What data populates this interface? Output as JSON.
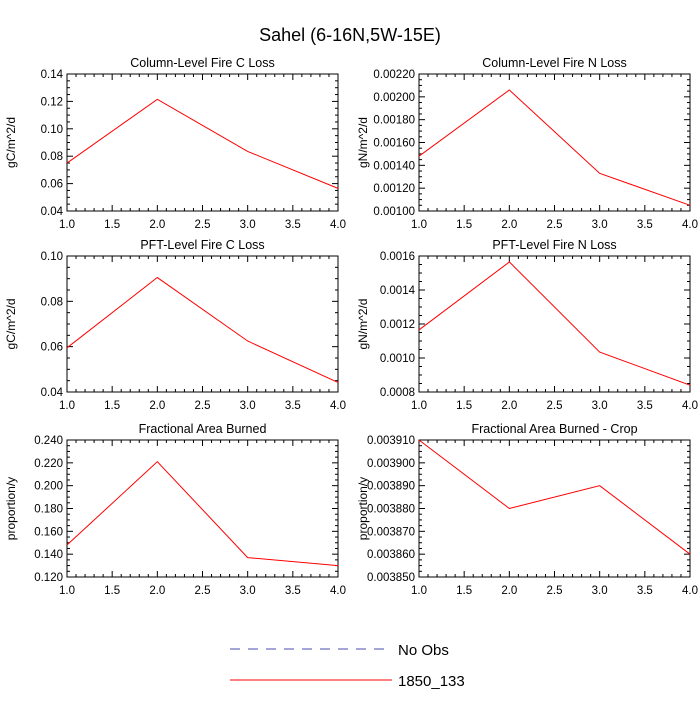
{
  "figure": {
    "title": "Sahel (6-16N,5W-15E)",
    "line_color": "#ff0000",
    "obs_color": "#4b4bb4"
  },
  "legend": {
    "items": [
      {
        "label": "No Obs",
        "style": "dashed"
      },
      {
        "label": "1850_133",
        "style": "solid"
      }
    ]
  },
  "chart_data": [
    {
      "type": "line",
      "title": "Column-Level Fire C Loss",
      "xlabel": "",
      "ylabel": "gC/m^2/d",
      "xlim": [
        1.0,
        4.0
      ],
      "ylim": [
        0.04,
        0.14
      ],
      "x_ticks": [
        "1.0",
        "1.5",
        "2.0",
        "2.5",
        "3.0",
        "3.5",
        "4.0"
      ],
      "y_ticks": [
        "0.04",
        "0.06",
        "0.08",
        "0.10",
        "0.12",
        "0.14"
      ],
      "series": [
        {
          "name": "1850_133",
          "x": [
            1.0,
            2.0,
            3.0,
            4.0
          ],
          "values": [
            0.075,
            0.1215,
            0.0835,
            0.0565
          ]
        }
      ]
    },
    {
      "type": "line",
      "title": "Column-Level Fire N Loss",
      "xlabel": "",
      "ylabel": "gN/m^2/d",
      "xlim": [
        1.0,
        4.0
      ],
      "ylim": [
        0.001,
        0.0022
      ],
      "x_ticks": [
        "1.0",
        "1.5",
        "2.0",
        "2.5",
        "3.0",
        "3.5",
        "4.0"
      ],
      "y_ticks": [
        "0.00100",
        "0.00120",
        "0.00140",
        "0.00160",
        "0.00180",
        "0.00200",
        "0.00220"
      ],
      "series": [
        {
          "name": "1850_133",
          "x": [
            1.0,
            2.0,
            3.0,
            4.0
          ],
          "values": [
            0.00148,
            0.00206,
            0.00133,
            0.00105
          ]
        }
      ]
    },
    {
      "type": "line",
      "title": "PFT-Level Fire C Loss",
      "xlabel": "",
      "ylabel": "gC/m^2/d",
      "xlim": [
        1.0,
        4.0
      ],
      "ylim": [
        0.04,
        0.1
      ],
      "x_ticks": [
        "1.0",
        "1.5",
        "2.0",
        "2.5",
        "3.0",
        "3.5",
        "4.0"
      ],
      "y_ticks": [
        "0.04",
        "0.06",
        "0.08",
        "0.10"
      ],
      "series": [
        {
          "name": "1850_133",
          "x": [
            1.0,
            2.0,
            3.0,
            4.0
          ],
          "values": [
            0.0595,
            0.0905,
            0.0625,
            0.0442
          ]
        }
      ]
    },
    {
      "type": "line",
      "title": "PFT-Level Fire N Loss",
      "xlabel": "",
      "ylabel": "gN/m^2/d",
      "xlim": [
        1.0,
        4.0
      ],
      "ylim": [
        0.0008,
        0.0016
      ],
      "x_ticks": [
        "1.0",
        "1.5",
        "2.0",
        "2.5",
        "3.0",
        "3.5",
        "4.0"
      ],
      "y_ticks": [
        "0.0008",
        "0.0010",
        "0.0012",
        "0.0014",
        "0.0016"
      ],
      "series": [
        {
          "name": "1850_133",
          "x": [
            1.0,
            2.0,
            3.0,
            4.0
          ],
          "values": [
            0.001165,
            0.001565,
            0.001035,
            0.00084
          ]
        }
      ]
    },
    {
      "type": "line",
      "title": "Fractional Area Burned",
      "xlabel": "",
      "ylabel": "proportion/y",
      "xlim": [
        1.0,
        4.0
      ],
      "ylim": [
        0.12,
        0.24
      ],
      "x_ticks": [
        "1.0",
        "1.5",
        "2.0",
        "2.5",
        "3.0",
        "3.5",
        "4.0"
      ],
      "y_ticks": [
        "0.120",
        "0.140",
        "0.160",
        "0.180",
        "0.200",
        "0.220",
        "0.240"
      ],
      "series": [
        {
          "name": "1850_133",
          "x": [
            1.0,
            2.0,
            3.0,
            4.0
          ],
          "values": [
            0.148,
            0.221,
            0.137,
            0.13
          ]
        }
      ]
    },
    {
      "type": "line",
      "title": "Fractional Area Burned - Crop",
      "xlabel": "",
      "ylabel": "proportion/y",
      "xlim": [
        1.0,
        4.0
      ],
      "ylim": [
        0.00385,
        0.00391
      ],
      "x_ticks": [
        "1.0",
        "1.5",
        "2.0",
        "2.5",
        "3.0",
        "3.5",
        "4.0"
      ],
      "y_ticks": [
        "0.003850",
        "0.003860",
        "0.003870",
        "0.003880",
        "0.003890",
        "0.003900",
        "0.003910"
      ],
      "series": [
        {
          "name": "1850_133",
          "x": [
            1.0,
            2.0,
            3.0,
            4.0
          ],
          "values": [
            0.00391,
            0.00388,
            0.00389,
            0.00386
          ]
        }
      ]
    }
  ]
}
